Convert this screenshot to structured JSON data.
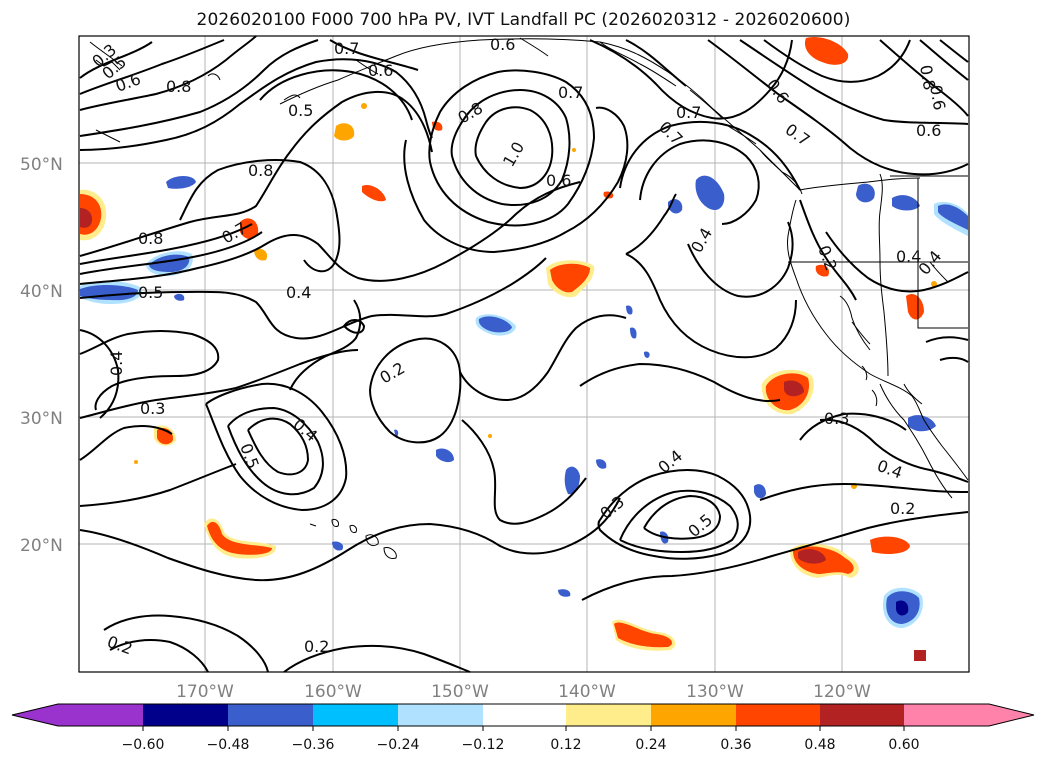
{
  "title": "2026020100 F000 700 hPa PV, IVT Landfall PC (2026020312 - 2026020600)",
  "latitude_labels": [
    "50°N",
    "40°N",
    "30°N",
    "20°N"
  ],
  "longitude_labels": [
    "170°W",
    "160°W",
    "150°W",
    "140°W",
    "130°W",
    "120°W"
  ],
  "colorbar": {
    "ticks": [
      "−0.60",
      "−0.48",
      "−0.36",
      "−0.24",
      "−0.12",
      "0.12",
      "0.24",
      "0.36",
      "0.48",
      "0.60"
    ],
    "colors": [
      "#9a32cd",
      "#00008b",
      "#3a5fcd",
      "#00bfff",
      "#b0e2ff",
      "#ffffff",
      "#ffec8b",
      "#ffa500",
      "#ff4500",
      "#b22222",
      "#ff82ab"
    ]
  },
  "contour_labels": [
    "0.3",
    "0.5",
    "0.6",
    "0.7",
    "0.6",
    "0.6",
    "0.8",
    "0.5",
    "0.6",
    "0.7",
    "0.8",
    "0.7",
    "0.6",
    "0.8",
    "1.0",
    "0.7",
    "0.6",
    "0.8",
    "0.6",
    "0.4",
    "0.8",
    "0.7",
    "0.4",
    "0.5",
    "0.4",
    "0.2",
    "0.4",
    "0.4",
    "0.3",
    "0.2",
    "0.5",
    "0.4",
    "0.3",
    "0.4",
    "0.3",
    "0.5",
    "0.4",
    "0.2",
    "0.2",
    "0.2",
    "0.7"
  ]
}
